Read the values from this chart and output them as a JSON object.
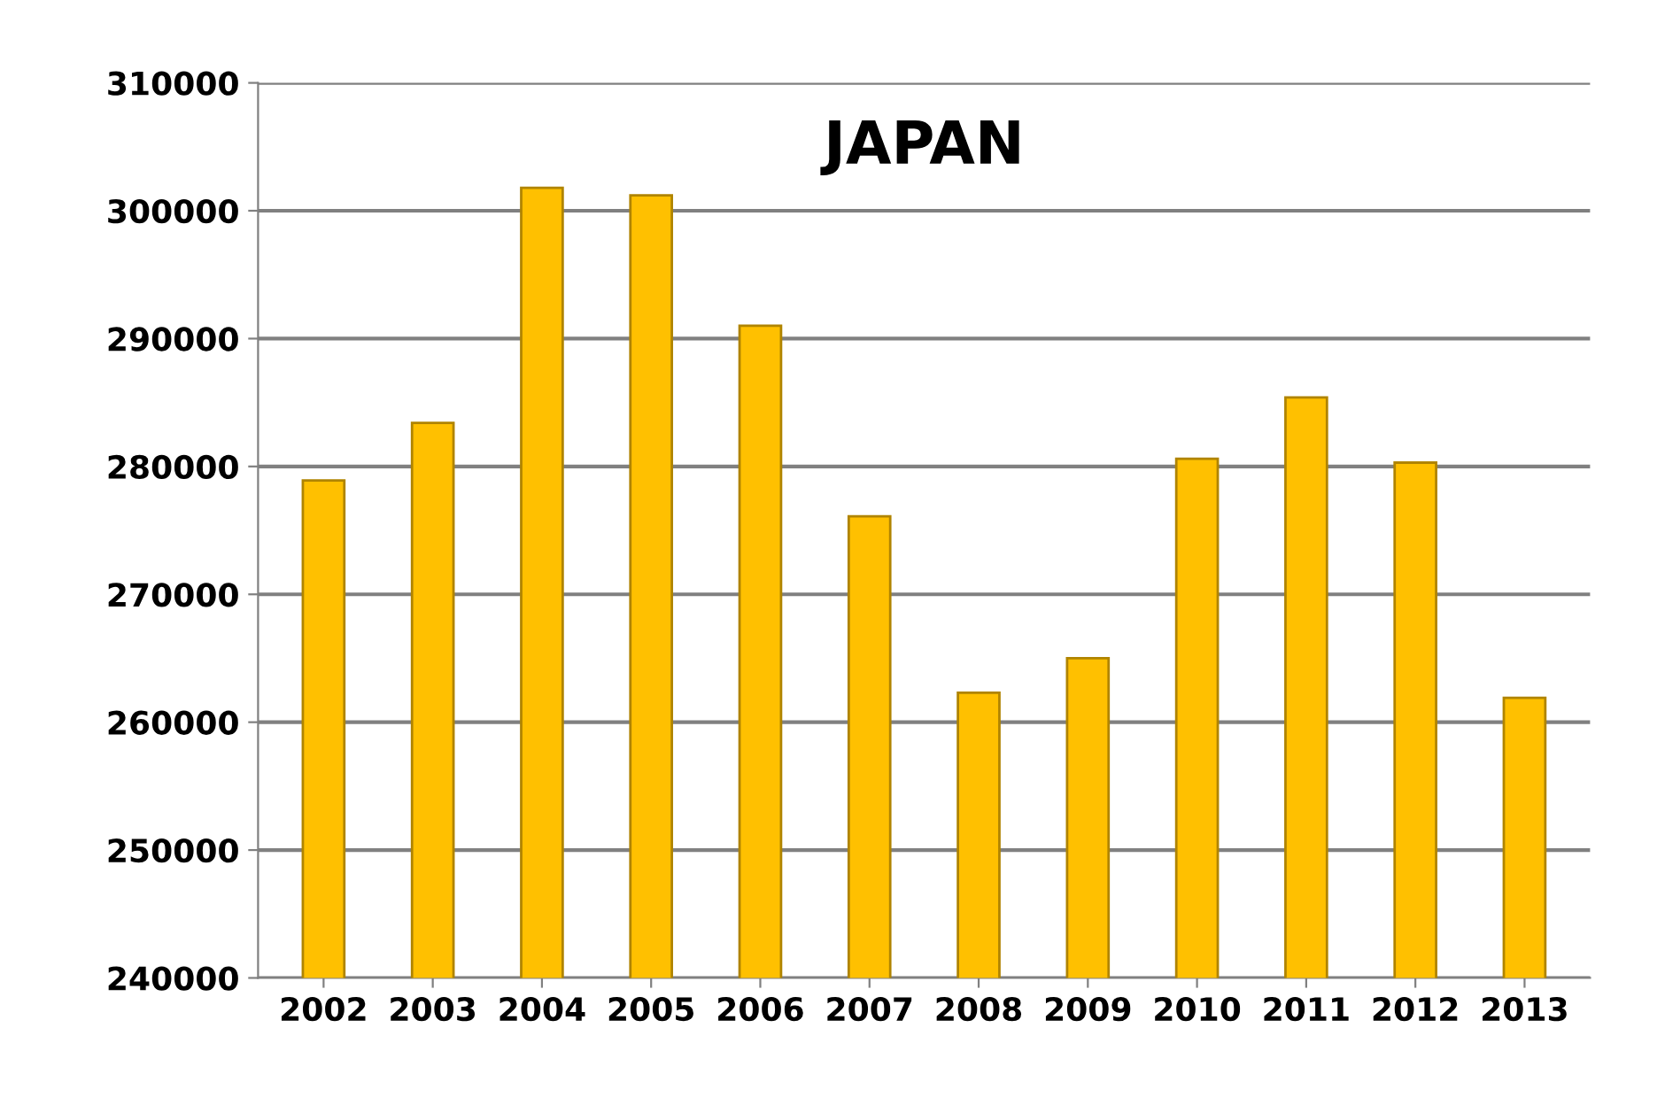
{
  "chart_data": {
    "type": "bar",
    "title": "JAPAN",
    "categories": [
      "2002",
      "2003",
      "2004",
      "2005",
      "2006",
      "2007",
      "2008",
      "2009",
      "2010",
      "2011",
      "2012",
      "2013"
    ],
    "values": [
      278900,
      283400,
      301800,
      301200,
      291000,
      276100,
      262300,
      265000,
      280600,
      285400,
      280300,
      261900
    ],
    "color": "#ffc000",
    "ylim": [
      240000,
      310000
    ],
    "yticks": [
      240000,
      250000,
      260000,
      270000,
      280000,
      290000,
      300000,
      310000
    ],
    "grid": "y"
  }
}
